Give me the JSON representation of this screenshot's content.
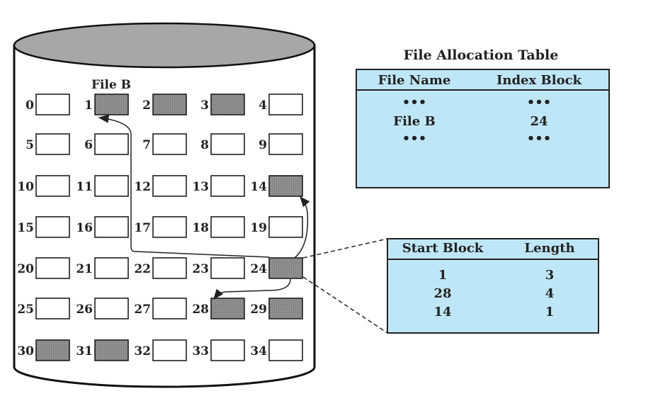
{
  "file_label": "File B",
  "colors": {
    "allocated": "#8c8c8c",
    "free": "#ffffff",
    "table_fill": "#bfe6f7",
    "cylinder_top": "#a7a7a7"
  },
  "disk_blocks": [
    {
      "number": "0",
      "allocated": false
    },
    {
      "number": "1",
      "allocated": true
    },
    {
      "number": "2",
      "allocated": true
    },
    {
      "number": "3",
      "allocated": true
    },
    {
      "number": "4",
      "allocated": false
    },
    {
      "number": "5",
      "allocated": false
    },
    {
      "number": "6",
      "allocated": false
    },
    {
      "number": "7",
      "allocated": false
    },
    {
      "number": "8",
      "allocated": false
    },
    {
      "number": "9",
      "allocated": false
    },
    {
      "number": "10",
      "allocated": false
    },
    {
      "number": "11",
      "allocated": false
    },
    {
      "number": "12",
      "allocated": false
    },
    {
      "number": "13",
      "allocated": false
    },
    {
      "number": "14",
      "allocated": true
    },
    {
      "number": "15",
      "allocated": false
    },
    {
      "number": "16",
      "allocated": false
    },
    {
      "number": "17",
      "allocated": false
    },
    {
      "number": "18",
      "allocated": false
    },
    {
      "number": "19",
      "allocated": false
    },
    {
      "number": "20",
      "allocated": false
    },
    {
      "number": "21",
      "allocated": false
    },
    {
      "number": "22",
      "allocated": false
    },
    {
      "number": "23",
      "allocated": false
    },
    {
      "number": "24",
      "allocated": true
    },
    {
      "number": "25",
      "allocated": false
    },
    {
      "number": "26",
      "allocated": false
    },
    {
      "number": "27",
      "allocated": false
    },
    {
      "number": "28",
      "allocated": true
    },
    {
      "number": "29",
      "allocated": true
    },
    {
      "number": "30",
      "allocated": true
    },
    {
      "number": "31",
      "allocated": true
    },
    {
      "number": "32",
      "allocated": false
    },
    {
      "number": "33",
      "allocated": false
    },
    {
      "number": "34",
      "allocated": false
    }
  ],
  "fat": {
    "title": "File Allocation Table",
    "headers": [
      "File Name",
      "Index Block"
    ],
    "rows": [
      [
        "•••",
        "•••"
      ],
      [
        "File B",
        "24"
      ],
      [
        "•••",
        "•••"
      ]
    ]
  },
  "index_table": {
    "headers": [
      "Start Block",
      "Length"
    ],
    "rows": [
      [
        "1",
        "3"
      ],
      [
        "28",
        "4"
      ],
      [
        "14",
        "1"
      ]
    ]
  }
}
